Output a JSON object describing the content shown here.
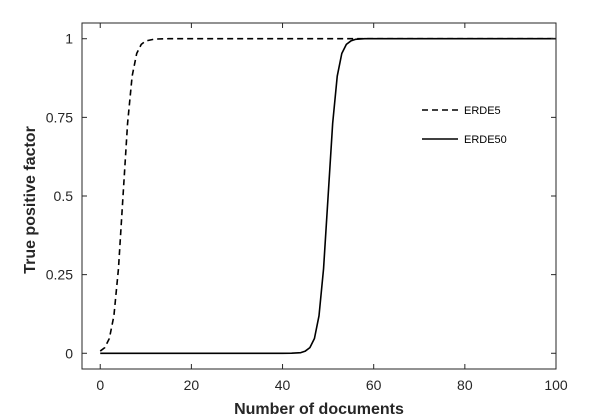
{
  "chart_data": {
    "type": "line",
    "xlabel": "Number of documents",
    "ylabel": "True positive factor",
    "xlim": [
      -4,
      100
    ],
    "ylim": [
      -0.05,
      1.05
    ],
    "x_ticks": [
      0,
      20,
      40,
      60,
      80,
      100
    ],
    "y_ticks": [
      0,
      0.25,
      0.5,
      0.75,
      1
    ],
    "y_tick_labels": [
      "0",
      "0.25",
      "0.5",
      "0.75",
      "1"
    ],
    "grid": false,
    "legend_position": "upper-right",
    "series": [
      {
        "name": "ERDE5",
        "style": "dashed",
        "color": "#000000",
        "x": [
          0,
          1,
          2,
          3,
          4,
          5,
          6,
          7,
          8,
          9,
          10,
          12,
          15,
          20,
          30,
          50,
          70,
          100
        ],
        "y": [
          0.007,
          0.018,
          0.047,
          0.119,
          0.269,
          0.5,
          0.731,
          0.881,
          0.953,
          0.982,
          0.993,
          0.999,
          1,
          1,
          1,
          1,
          1,
          1
        ]
      },
      {
        "name": "ERDE50",
        "style": "solid",
        "color": "#000000",
        "x": [
          0,
          10,
          20,
          30,
          40,
          42,
          44,
          45,
          46,
          47,
          48,
          49,
          50,
          51,
          52,
          53,
          54,
          55,
          56,
          58,
          60,
          70,
          80,
          100
        ],
        "y": [
          0,
          0,
          0,
          0,
          0,
          0.0003,
          0.002,
          0.007,
          0.018,
          0.047,
          0.119,
          0.269,
          0.5,
          0.731,
          0.881,
          0.953,
          0.982,
          0.993,
          0.998,
          1,
          1,
          1,
          1,
          1
        ]
      }
    ]
  }
}
